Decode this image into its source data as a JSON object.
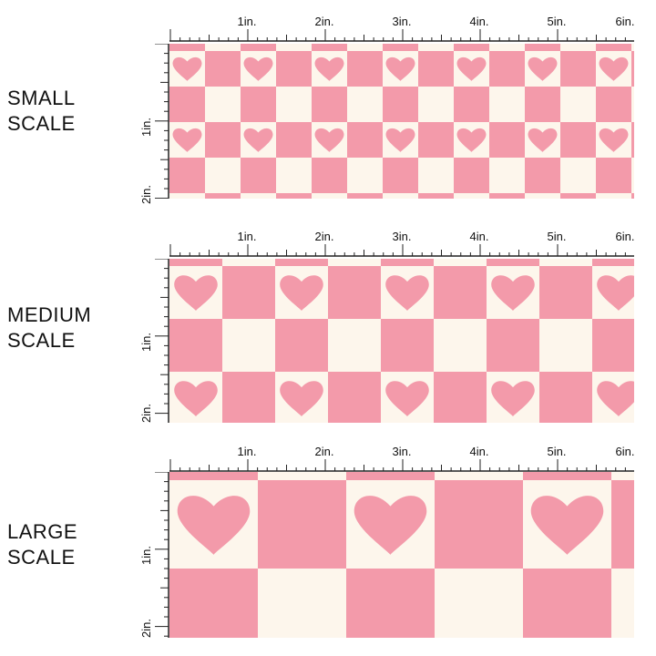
{
  "colors": {
    "pink": "#f39aaa",
    "cream": "#fdf6ec",
    "ruler": "#222222"
  },
  "panels": [
    {
      "label_line1": "SMALL",
      "label_line2": "SCALE",
      "ruler_top": [
        "1in.",
        "2in.",
        "3in.",
        "4in.",
        "5in.",
        "6in."
      ],
      "ruler_left": [
        "1in.",
        "2in."
      ]
    },
    {
      "label_line1": "MEDIUM",
      "label_line2": "SCALE",
      "ruler_top": [
        "1in.",
        "2in.",
        "3in.",
        "4in.",
        "5in.",
        "6in."
      ],
      "ruler_left": [
        "1in.",
        "2in."
      ]
    },
    {
      "label_line1": "LARGE",
      "label_line2": "SCALE",
      "ruler_top": [
        "1in.",
        "2in.",
        "3in.",
        "4in.",
        "5in.",
        "6in."
      ],
      "ruler_left": [
        "1in.",
        "2in."
      ]
    }
  ]
}
